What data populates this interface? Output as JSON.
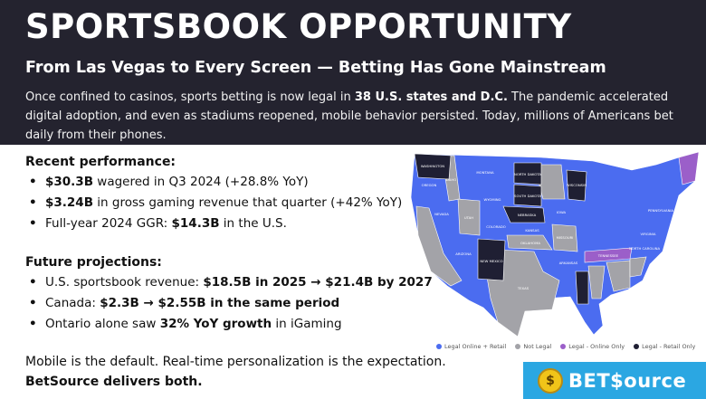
{
  "header": {
    "title": "SPORTSBOOK OPPORTUNITY",
    "subtitle": "From Las Vegas to Every Screen — Betting Has Gone Mainstream",
    "intro_a": "Once confined to casinos, sports betting is now legal in ",
    "intro_bold": "38 U.S. states and D.C.",
    "intro_b": " The pandemic accelerated digital adoption, and even as stadiums reopened, mobile behavior persisted. Today, millions of Americans bet daily from their phones."
  },
  "recent": {
    "heading": "Recent performance:",
    "items": [
      {
        "bold": "$30.3B",
        "text": " wagered in Q3 2024 (+28.8% YoY)"
      },
      {
        "bold": "$3.24B",
        "text": " in gross gaming revenue that quarter (+42% YoY)"
      },
      {
        "pre": "Full-year 2024 GGR: ",
        "bold": "$14.3B",
        "text": " in the U.S."
      }
    ]
  },
  "future": {
    "heading": "Future projections:",
    "items": [
      {
        "pre": "U.S. sportsbook revenue: ",
        "bold": "$18.5B in 2025 → $21.4B by 2027",
        "text": ""
      },
      {
        "pre": "Canada: ",
        "bold": "$2.3B → $2.55B in the same period",
        "text": ""
      },
      {
        "pre": "Ontario alone saw ",
        "bold": "32% YoY growth",
        "text": " in iGaming"
      }
    ]
  },
  "footer": {
    "line1": "Mobile is the default. Real-time personalization is the expectation.",
    "line2": "BetSource delivers both."
  },
  "map": {
    "legend": [
      {
        "label": "Legal Online + Retail",
        "color": "#4b6cf0"
      },
      {
        "label": "Not Legal",
        "color": "#a3a3a8"
      },
      {
        "label": "Legal - Online Only",
        "color": "#9b5fc9"
      },
      {
        "label": "Legal - Retail Only",
        "color": "#1f1f33"
      }
    ],
    "state_labels": [
      "WASHINGTON",
      "MONTANA",
      "NORTH DAKOTA",
      "SOUTH DAKOTA",
      "NEBRASKA",
      "NEW MEXICO",
      "WYOMING",
      "COLORADO",
      "ARIZONA",
      "NEVADA",
      "OREGON",
      "IDAHO",
      "UTAH",
      "KANSAS",
      "OKLAHOMA",
      "TEXAS",
      "IOWA",
      "MISSOURI",
      "ARKANSAS",
      "TENNESSEE",
      "NORTH CAROLINA",
      "VIRGINIA",
      "PENNSYLVANIA",
      "FLORIDA",
      "WISCONSIN"
    ],
    "colors": {
      "online_retail": "#4b6cf0",
      "not_legal": "#a3a3a8",
      "online_only": "#9b5fc9",
      "retail_only": "#1f1f33"
    }
  },
  "brand": {
    "coin": "$",
    "name": "BET$ource"
  }
}
